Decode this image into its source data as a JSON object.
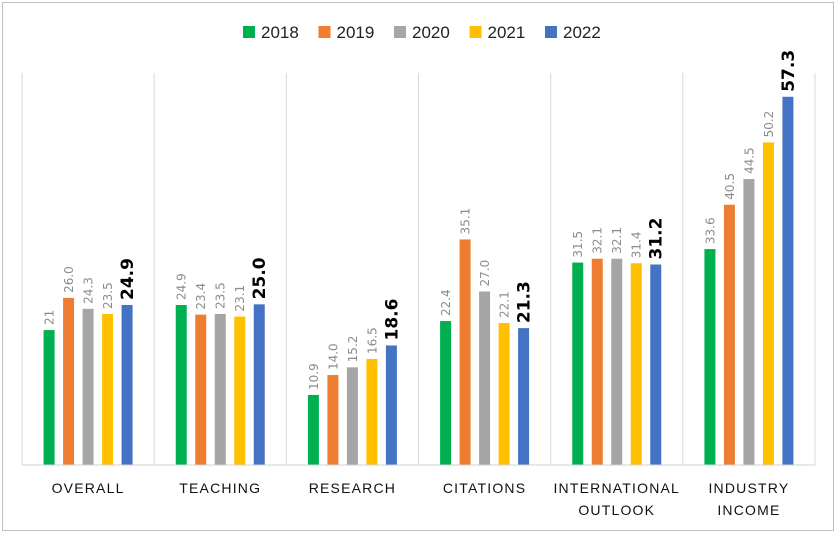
{
  "chart_data": {
    "type": "bar",
    "title": "",
    "xlabel": "",
    "ylabel": "",
    "ylim": [
      0,
      61
    ],
    "grid": false,
    "legend_position": "top",
    "categories": [
      [
        "OVERALL"
      ],
      [
        "TEACHING"
      ],
      [
        "RESEARCH"
      ],
      [
        "CITATIONS"
      ],
      [
        "INTERNATIONAL",
        "OUTLOOK"
      ],
      [
        "INDUSTRY",
        "INCOME"
      ]
    ],
    "series": [
      {
        "name": "2018",
        "color": "#00b050",
        "values": [
          21,
          24.9,
          10.9,
          22.4,
          31.5,
          33.6
        ],
        "labels": [
          "21",
          "24.9",
          "10.9",
          "22.4",
          "31.5",
          "33.6"
        ]
      },
      {
        "name": "2019",
        "color": "#ed7d31",
        "values": [
          26.0,
          23.4,
          14.0,
          35.1,
          32.1,
          40.5
        ],
        "labels": [
          "26.0",
          "23.4",
          "14.0",
          "35.1",
          "32.1",
          "40.5"
        ]
      },
      {
        "name": "2020",
        "color": "#a5a5a5",
        "values": [
          24.3,
          23.5,
          15.2,
          27.0,
          32.1,
          44.5
        ],
        "labels": [
          "24.3",
          "23.5",
          "15.2",
          "27.0",
          "32.1",
          "44.5"
        ]
      },
      {
        "name": "2021",
        "color": "#ffc000",
        "values": [
          23.5,
          23.1,
          16.5,
          22.1,
          31.4,
          50.2
        ],
        "labels": [
          "23.5",
          "23.1",
          "16.5",
          "22.1",
          "31.4",
          "50.2"
        ]
      },
      {
        "name": "2022",
        "color": "#4472c4",
        "values": [
          24.9,
          25.0,
          18.6,
          21.3,
          31.2,
          57.3
        ],
        "labels": [
          "24.9",
          "25.0",
          "18.6",
          "21.3",
          "31.2",
          "57.3"
        ],
        "emphasized": true
      }
    ]
  }
}
